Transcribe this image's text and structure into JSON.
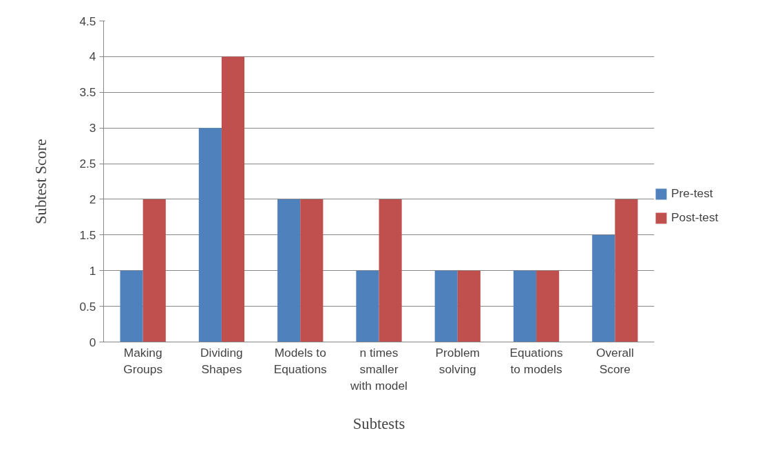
{
  "chart_data": {
    "type": "bar",
    "xlabel": "Subtests",
    "ylabel": "Subtest Score",
    "categories": [
      "Making\nGroups",
      "Dividing\nShapes",
      "Models to\nEquations",
      "n times\nsmaller\nwith model",
      "Problem\nsolving",
      "Equations\nto models",
      "Overall\nScore"
    ],
    "series": [
      {
        "name": "Pre-test",
        "color": "#4f81bd",
        "values": [
          1,
          3,
          2,
          1,
          1,
          1,
          1.5
        ]
      },
      {
        "name": "Post-test",
        "color": "#c0504d",
        "values": [
          2,
          4,
          2,
          2,
          1,
          1,
          2
        ]
      }
    ],
    "ylim": [
      0,
      4.5
    ],
    "yticks": [
      0,
      0.5,
      1,
      1.5,
      2,
      2.5,
      3,
      3.5,
      4,
      4.5
    ],
    "grid": "y",
    "legend": "right"
  }
}
